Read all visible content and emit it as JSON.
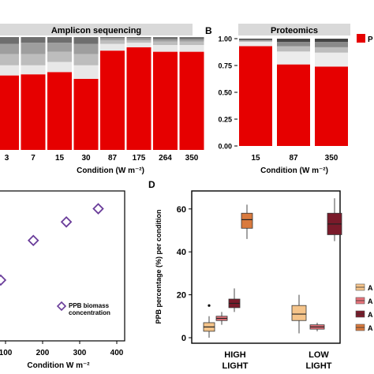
{
  "panels": {
    "B": {
      "letter": "B"
    },
    "D": {
      "letter": "D"
    }
  },
  "chart_data": [
    {
      "id": "A",
      "type": "bar",
      "title": "Amplicon sequencing",
      "xlabel": "Condition (W m⁻²)",
      "categories": [
        "3",
        "7",
        "15",
        "30",
        "87",
        "175",
        "264",
        "350"
      ],
      "series": [
        {
          "color": "#e60000",
          "values": [
            0.66,
            0.67,
            0.69,
            0.63,
            0.88,
            0.91,
            0.87,
            0.87
          ]
        },
        {
          "color": "#e8e8e8",
          "values": [
            0.09,
            0.08,
            0.09,
            0.12,
            0.06,
            0.04,
            0.06,
            0.06
          ]
        },
        {
          "color": "#bdbdbd",
          "values": [
            0.1,
            0.1,
            0.09,
            0.1,
            0.03,
            0.02,
            0.03,
            0.03
          ]
        },
        {
          "color": "#9e9e9e",
          "values": [
            0.09,
            0.1,
            0.08,
            0.09,
            0.02,
            0.02,
            0.02,
            0.02
          ]
        },
        {
          "color": "#6e6e6e",
          "values": [
            0.06,
            0.05,
            0.05,
            0.06,
            0.01,
            0.01,
            0.02,
            0.02
          ]
        }
      ],
      "ylim": [
        0,
        1
      ]
    },
    {
      "id": "B",
      "type": "bar",
      "title": "Proteomics",
      "xlabel": "Condition (W m⁻²)",
      "categories": [
        "15",
        "87",
        "350"
      ],
      "yticks": [
        "0.00",
        "0.25",
        "0.50",
        "0.75",
        "1.00"
      ],
      "series": [
        {
          "color": "#e60000",
          "values": [
            0.93,
            0.76,
            0.74
          ]
        },
        {
          "color": "#ececec",
          "values": [
            0.04,
            0.12,
            0.13
          ]
        },
        {
          "color": "#bdbdbd",
          "values": [
            0.01,
            0.05,
            0.05
          ]
        },
        {
          "color": "#8a8a8a",
          "values": [
            0.01,
            0.04,
            0.05
          ]
        },
        {
          "color": "#444444",
          "values": [
            0.01,
            0.03,
            0.03
          ]
        }
      ],
      "legend": {
        "placement": "right",
        "entries": [
          "P"
        ],
        "color": "#e60000"
      },
      "ylim": [
        0,
        1
      ]
    },
    {
      "id": "C",
      "type": "scatter",
      "xlabel": "Condition W m⁻²",
      "xticks": [
        "100",
        "200",
        "300",
        "400"
      ],
      "points": [
        {
          "x": 87,
          "y": 0.2
        },
        {
          "x": 175,
          "y": 0.35
        },
        {
          "x": 264,
          "y": 0.42
        },
        {
          "x": 350,
          "y": 0.47
        }
      ],
      "marker_color": "#6a3d9a",
      "legend": {
        "placement": "bottom-right",
        "label": "PPB biomass concentration",
        "lines": [
          "PPB biomass",
          "concentration"
        ]
      }
    },
    {
      "id": "D",
      "type": "box",
      "ylabel": "PPB percentage (%) per condition",
      "yticks": [
        "0",
        "20",
        "40",
        "60"
      ],
      "ylim": [
        -2,
        67
      ],
      "groups": [
        {
          "label_lines": [
            "HIGH",
            "LIGHT"
          ]
        },
        {
          "label_lines": [
            "LOW",
            "LIGHT"
          ]
        }
      ],
      "boxes": [
        {
          "group": 0,
          "color": "#f5c48a",
          "min": 0,
          "q1": 3,
          "median": 5,
          "q3": 7,
          "max": 10,
          "outliers": [
            15
          ]
        },
        {
          "group": 0,
          "color": "#e8737b",
          "min": 6,
          "q1": 8,
          "median": 9,
          "q3": 10,
          "max": 12,
          "outliers": []
        },
        {
          "group": 0,
          "color": "#7a1a2a",
          "min": 12,
          "q1": 14,
          "median": 16,
          "q3": 18,
          "max": 23,
          "outliers": []
        },
        {
          "group": 0,
          "color": "#d97a3e",
          "min": 46,
          "q1": 51,
          "median": 55,
          "q3": 58,
          "max": 62,
          "outliers": []
        },
        {
          "group": 1,
          "color": "#f5c48a",
          "min": 2,
          "q1": 8,
          "median": 11,
          "q3": 15,
          "max": 20,
          "outliers": []
        },
        {
          "group": 1,
          "color": "#e8737b",
          "min": 3,
          "q1": 4,
          "median": 5,
          "q3": 6,
          "max": 7,
          "outliers": []
        },
        {
          "group": 1,
          "color": "#7a1a2a",
          "min": 45,
          "q1": 48,
          "median": 53,
          "q3": 58,
          "max": 65,
          "outliers": []
        }
      ],
      "legend": {
        "placement": "right",
        "entries": [
          "A",
          "A",
          "A",
          "A"
        ],
        "colors": [
          "#f5c48a",
          "#e8737b",
          "#7a1a2a",
          "#d97a3e"
        ]
      }
    }
  ]
}
